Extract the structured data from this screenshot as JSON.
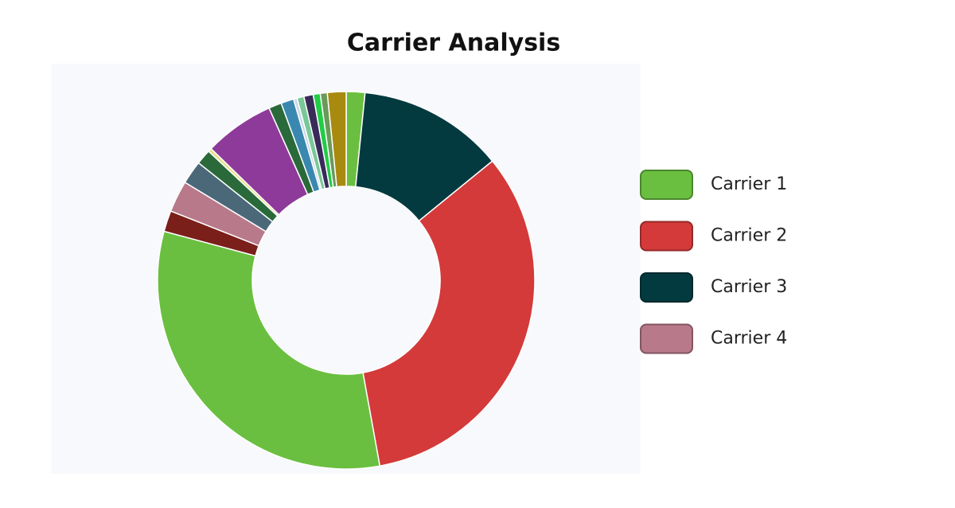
{
  "chart_data": {
    "type": "doughnut",
    "title": "Carrier Analysis",
    "categories": [
      null,
      "Carrier 3",
      "Carrier 2",
      "Carrier 1",
      null,
      "Carrier 4",
      null,
      null,
      null,
      null,
      null,
      null,
      null,
      null,
      null,
      null,
      null,
      null
    ],
    "values": [
      1.6,
      12.5,
      33,
      32,
      1.8,
      2.7,
      2,
      1.3,
      0.3,
      6,
      1.1,
      1.1,
      0.3,
      0.6,
      0.8,
      0.6,
      0.6,
      1.6
    ],
    "colors": [
      "#6abf40",
      "#033a40",
      "#d43a3a",
      "#6abf40",
      "#7a1f1a",
      "#b87a8a",
      "#4a6878",
      "#2a6a3a",
      "#e8e08a",
      "#8e3a9a",
      "#2a6a3a",
      "#3a88b0",
      "#c8d8e8",
      "#7ac898",
      "#3a2a5a",
      "#22cc44",
      "#6a9a5a",
      "#a88a10"
    ],
    "legend_position": "right"
  }
}
